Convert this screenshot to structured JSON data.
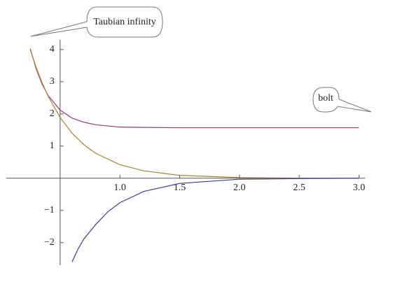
{
  "chart_data": {
    "type": "line",
    "xlim": [
      0.05,
      3.05
    ],
    "ylim": [
      -2.7,
      4.3
    ],
    "axes_origin": [
      0.5,
      0
    ],
    "xticks": [
      {
        "value": 1,
        "label": "1.0"
      },
      1.5,
      {
        "value": 2,
        "label": "2.0"
      },
      2.5,
      {
        "value": 3,
        "label": "3.0"
      }
    ],
    "yticks": [
      {
        "value": -2,
        "label": "−2"
      },
      {
        "value": -1,
        "label": "−1"
      },
      1,
      2,
      3,
      4
    ],
    "series": [
      {
        "color": "#9a3a6a",
        "x": [
          0.25,
          0.3,
          0.35,
          0.4,
          0.5,
          0.6,
          0.7,
          0.8,
          1.0,
          1.2,
          1.5,
          2.0,
          2.5,
          3.0
        ],
        "values": [
          4.03,
          3.4,
          2.92,
          2.57,
          2.12,
          1.87,
          1.74,
          1.66,
          1.59,
          1.58,
          1.57,
          1.57,
          1.57,
          1.57
        ]
      },
      {
        "color": "#a6822c",
        "x": [
          0.25,
          0.3,
          0.35,
          0.4,
          0.5,
          0.6,
          0.7,
          0.8,
          1.0,
          1.2,
          1.5,
          2.0,
          2.5,
          3.0
        ],
        "values": [
          4.0,
          3.44,
          2.96,
          2.55,
          1.89,
          1.4,
          1.04,
          0.77,
          0.42,
          0.23,
          0.09,
          0.02,
          0.005,
          0.001
        ]
      },
      {
        "color": "#3b3b9e",
        "x": [
          0.6,
          0.65,
          0.7,
          0.8,
          0.9,
          1.0,
          1.2,
          1.5,
          2.0,
          2.5,
          3.0
        ],
        "values": [
          -2.6,
          -2.2,
          -1.88,
          -1.43,
          -1.04,
          -0.76,
          -0.41,
          -0.16,
          -0.03,
          -0.01,
          0
        ]
      }
    ],
    "annotations": [
      "Taubian infinity",
      "bolt"
    ]
  }
}
